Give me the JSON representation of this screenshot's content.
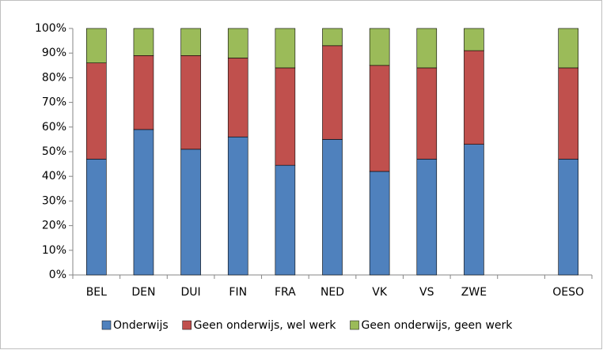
{
  "chart_data": {
    "type": "stacked_bar",
    "categories": [
      "BEL",
      "DEN",
      "DUI",
      "FIN",
      "FRA",
      "NED",
      "VK",
      "VS",
      "ZWE",
      null,
      "OESO"
    ],
    "series": [
      {
        "name": "Onderwijs",
        "color": "#4f81bd",
        "values": [
          47,
          59,
          51,
          56,
          44.5,
          55,
          42,
          47,
          53,
          null,
          47
        ]
      },
      {
        "name": "Geen onderwijs, wel werk",
        "color": "#c0504d",
        "values": [
          39,
          30,
          38,
          32,
          39.5,
          38,
          43,
          37,
          38,
          null,
          37
        ]
      },
      {
        "name": "Geen onderwijs, geen werk",
        "color": "#9bbb59",
        "values": [
          14,
          11,
          11,
          12,
          16,
          7,
          15,
          16,
          9,
          null,
          16
        ]
      }
    ],
    "ylim": [
      0,
      100
    ],
    "yticks": [
      {
        "value": 0,
        "label": "0%"
      },
      {
        "value": 10,
        "label": "10%"
      },
      {
        "value": 20,
        "label": "20%"
      },
      {
        "value": 30,
        "label": "30%"
      },
      {
        "value": 40,
        "label": "40%"
      },
      {
        "value": 50,
        "label": "50%"
      },
      {
        "value": 60,
        "label": "60%"
      },
      {
        "value": 70,
        "label": "70%"
      },
      {
        "value": 80,
        "label": "80%"
      },
      {
        "value": 90,
        "label": "90%"
      },
      {
        "value": 100,
        "label": "100%"
      }
    ],
    "legend": "bottom"
  }
}
